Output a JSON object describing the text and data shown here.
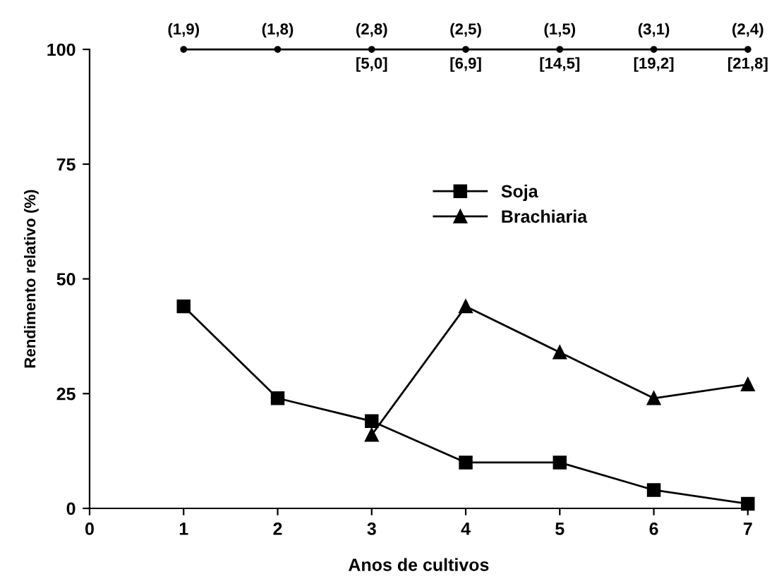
{
  "chart_data": {
    "type": "line",
    "xlabel": "Anos de cultivos",
    "ylabel": "Rendimento relativo (%)",
    "x": [
      1,
      2,
      3,
      4,
      5,
      6,
      7
    ],
    "series": [
      {
        "name": "Soja",
        "color": "#000000",
        "marker": "square",
        "values": [
          44,
          24,
          19,
          10,
          10,
          4,
          1
        ]
      },
      {
        "name": "Brachiaria",
        "color": "#000000",
        "marker": "triangle",
        "x": [
          3,
          4,
          5,
          6,
          7
        ],
        "values": [
          16,
          44,
          34,
          24,
          27
        ]
      },
      {
        "color": "#000000",
        "marker": "circle",
        "values": [
          100,
          100,
          100,
          100,
          100,
          100,
          100
        ]
      }
    ],
    "annotations": [
      {
        "text": "(1,9)",
        "x": 1,
        "y": 100
      },
      {
        "text": "(1,8)",
        "x": 2,
        "y": 100
      },
      {
        "text": "(2,8)",
        "x": 3,
        "y": 100
      },
      {
        "text": "(2,5)",
        "x": 4,
        "y": 100
      },
      {
        "text": "(1,5)",
        "x": 5,
        "y": 100
      },
      {
        "text": "(3,1)",
        "x": 6,
        "y": 100
      },
      {
        "text": "(2,4)",
        "x": 7,
        "y": 100
      },
      {
        "text": "[5,0]",
        "x": 3,
        "y": 100
      },
      {
        "text": "[6,9]",
        "x": 4,
        "y": 100
      },
      {
        "text": "[14,5]",
        "x": 5,
        "y": 100
      },
      {
        "text": "[19,2]",
        "x": 6,
        "y": 100
      },
      {
        "text": "[21,8]",
        "x": 7,
        "y": 100
      }
    ],
    "xlim": [
      0,
      7
    ],
    "xticks": [
      0,
      1,
      2,
      3,
      4,
      5,
      6,
      7
    ],
    "ylim": [
      0,
      100
    ],
    "yticks": [
      0,
      25,
      50,
      75,
      100
    ],
    "grid": false,
    "legend": "top right",
    "line_style": "solid"
  }
}
